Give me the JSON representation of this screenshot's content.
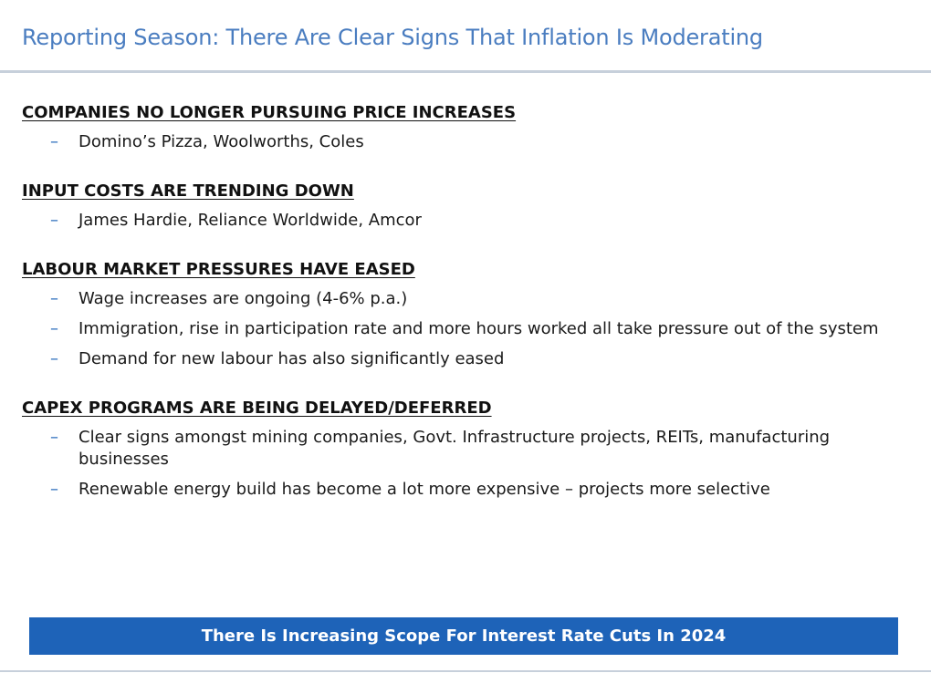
{
  "title": "Reporting Season: There Are Clear Signs That Inflation Is Moderating",
  "sections": [
    {
      "heading": "COMPANIES NO LONGER PURSUING PRICE INCREASES",
      "bullets": [
        "Domino’s Pizza, Woolworths, Coles"
      ]
    },
    {
      "heading": "INPUT COSTS ARE TRENDING DOWN",
      "bullets": [
        "James Hardie, Reliance Worldwide, Amcor"
      ]
    },
    {
      "heading": "LABOUR MARKET PRESSURES HAVE EASED",
      "bullets": [
        "Wage increases are ongoing (4-6% p.a.)",
        "Immigration, rise in participation rate and more hours worked all take pressure out of the system",
        "Demand for new labour has also significantly eased"
      ]
    },
    {
      "heading": "CAPEX PROGRAMS ARE BEING DELAYED/DEFERRED",
      "bullets": [
        "Clear signs amongst mining companies, Govt. Infrastructure projects, REITs, manufacturing businesses",
        "Renewable energy build has become a lot more expensive – projects more selective"
      ]
    }
  ],
  "bullet_marker": "–",
  "banner": "There Is Increasing Scope For Interest Rate Cuts In 2024",
  "colors": {
    "title": "#4a7dc0",
    "banner_bg": "#1e63b8",
    "bullet_dash": "#2e6fbd",
    "rule": "#c7d0db"
  }
}
